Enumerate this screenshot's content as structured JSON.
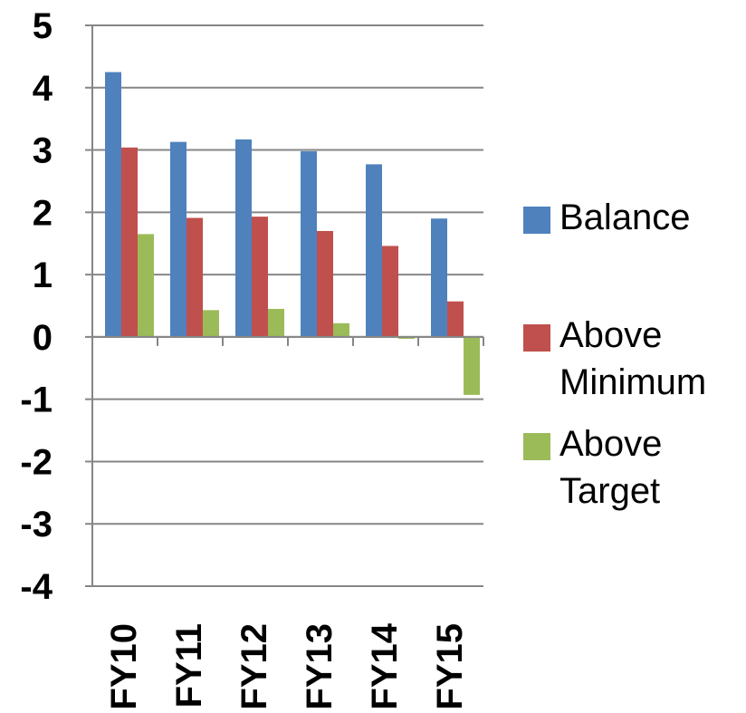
{
  "chart_data": {
    "type": "bar",
    "title": "",
    "xlabel": "",
    "ylabel": "",
    "categories": [
      "FY10",
      "FY11",
      "FY12",
      "FY13",
      "FY14",
      "FY15"
    ],
    "ylim": [
      -4,
      5
    ],
    "yticks": [
      "5",
      "4",
      "3",
      "2",
      "1",
      "0",
      "-1",
      "-2",
      "-3",
      "-4"
    ],
    "grid": true,
    "legend_position": "right",
    "series": [
      {
        "name": "Balance",
        "color": "#4f81bd",
        "values": [
          4.25,
          3.13,
          3.17,
          2.98,
          2.77,
          1.9
        ]
      },
      {
        "name": "Above Minimum",
        "color": "#c0504d",
        "values": [
          3.04,
          1.91,
          1.93,
          1.7,
          1.46,
          0.57
        ]
      },
      {
        "name": "Above Target",
        "color": "#9bbb59",
        "values": [
          1.65,
          0.43,
          0.45,
          0.22,
          -0.03,
          -0.93
        ]
      }
    ]
  }
}
